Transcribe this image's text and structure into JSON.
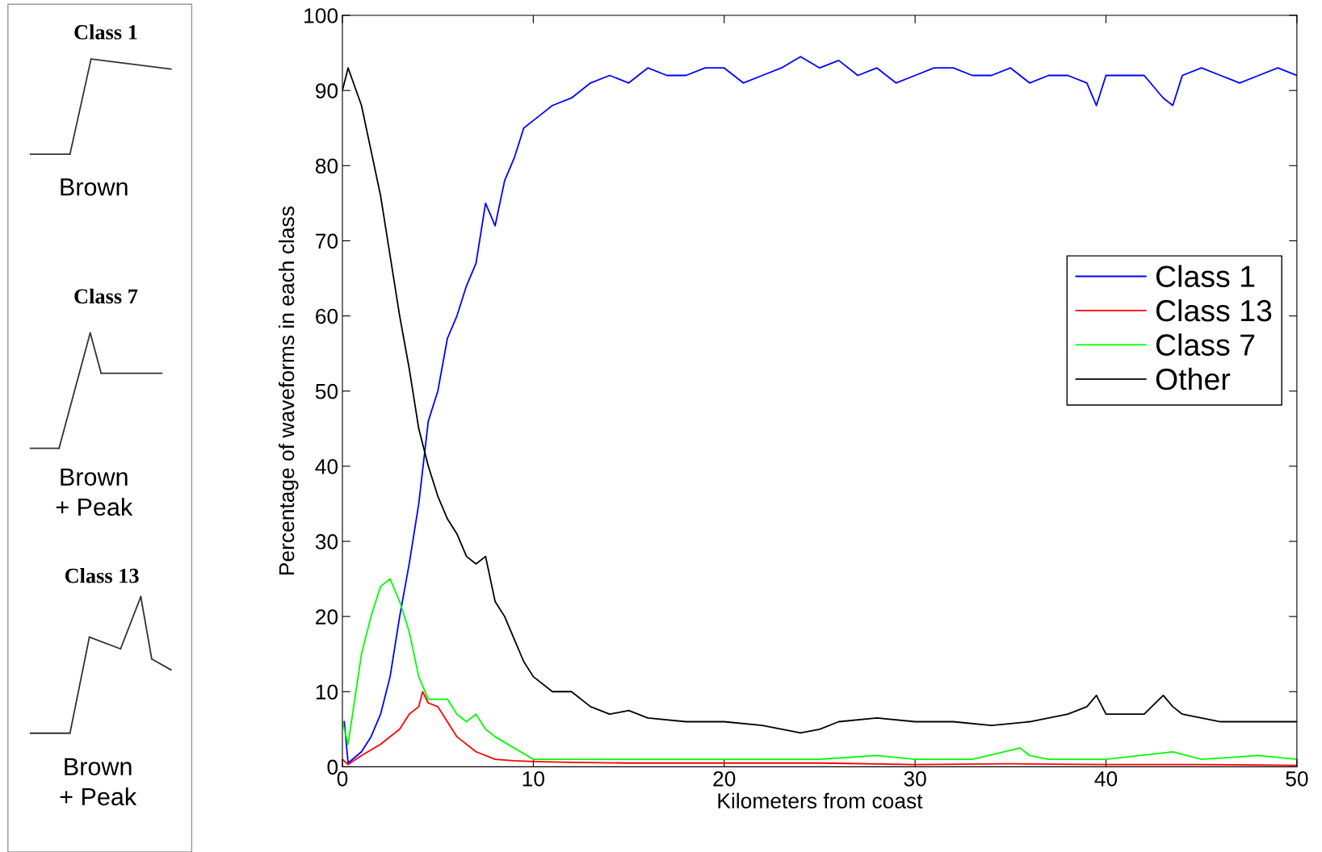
{
  "chart_data": {
    "type": "line",
    "xlabel": "Kilometers from coast",
    "ylabel": "Percentage of waveforms in each class",
    "xlim": [
      0,
      50
    ],
    "ylim": [
      0,
      100
    ],
    "xticks": [
      0,
      10,
      20,
      30,
      40,
      50
    ],
    "yticks": [
      0,
      10,
      20,
      30,
      40,
      50,
      60,
      70,
      80,
      90,
      100
    ],
    "grid": false,
    "legend": "top right",
    "annotations": [
      "Class 1",
      "Brown",
      "Class 7",
      "Brown\n+ Peak",
      "Class 13",
      "Brown\n+ Peak"
    ],
    "series": [
      {
        "name": "Class 1",
        "color": "#0000ff",
        "x": [
          0.1,
          0.3,
          1,
          1.5,
          2,
          2.5,
          3,
          3.5,
          4,
          4.5,
          5,
          5.5,
          6,
          6.5,
          7,
          7.5,
          8,
          8.5,
          9,
          9.5,
          10,
          10.5,
          11,
          12,
          13,
          14,
          15,
          16,
          17,
          18,
          19,
          20,
          21,
          22,
          23,
          24,
          25,
          26,
          27,
          28,
          29,
          30,
          31,
          32,
          33,
          34,
          35,
          36,
          37,
          38,
          39,
          39.5,
          40,
          41,
          42,
          43,
          43.5,
          44,
          45,
          46,
          47,
          48,
          49,
          50
        ],
        "values": [
          6,
          0.5,
          2,
          4,
          7,
          12,
          20,
          27,
          35,
          46,
          50,
          57,
          60,
          64,
          67,
          75,
          72,
          78,
          81,
          85,
          86,
          87,
          88,
          89,
          91,
          92,
          91,
          93,
          92,
          92,
          93,
          93,
          91,
          92,
          93,
          94.5,
          93,
          94,
          92,
          93,
          91,
          92,
          93,
          93,
          92,
          92,
          93,
          91,
          92,
          92,
          91,
          88,
          92,
          92,
          92,
          89,
          88,
          92,
          93,
          92,
          91,
          92,
          93,
          92
        ]
      },
      {
        "name": "Class 13",
        "color": "#ff0000",
        "x": [
          0,
          0.3,
          1,
          2,
          3,
          3.5,
          4,
          4.2,
          4.5,
          5,
          5.5,
          6,
          7,
          8,
          9,
          10,
          12,
          15,
          20,
          25,
          30,
          35,
          40,
          45,
          50
        ],
        "values": [
          1,
          0.3,
          1.5,
          3,
          5,
          7,
          8,
          10,
          8.5,
          8,
          6,
          4,
          2,
          1,
          0.8,
          0.7,
          0.6,
          0.5,
          0.5,
          0.5,
          0.3,
          0.4,
          0.3,
          0.3,
          0.2
        ]
      },
      {
        "name": "Class 7",
        "color": "#00ff00",
        "x": [
          0,
          0.3,
          1,
          1.5,
          2,
          2.5,
          3,
          3.5,
          4,
          4.5,
          5,
          5.5,
          6,
          6.5,
          7,
          7.5,
          8,
          9,
          10,
          12,
          15,
          20,
          25,
          28,
          30,
          33,
          35.5,
          36,
          37,
          40,
          43.5,
          45,
          48,
          50
        ],
        "values": [
          6,
          3,
          15,
          20,
          24,
          25,
          22,
          18,
          12,
          9,
          9,
          9,
          7,
          6,
          7,
          5,
          4,
          2.5,
          1,
          1,
          1,
          1,
          1,
          1.5,
          1,
          1,
          2.5,
          1.5,
          1,
          1,
          2,
          1,
          1.5,
          1
        ]
      },
      {
        "name": "Other",
        "color": "#000000",
        "x": [
          0,
          0.3,
          1,
          1.5,
          2,
          2.5,
          3,
          3.5,
          4,
          4.5,
          5,
          5.5,
          6,
          6.5,
          7,
          7.5,
          8,
          8.5,
          9,
          9.5,
          10,
          11,
          12,
          13,
          14,
          15,
          16,
          18,
          20,
          22,
          24,
          25,
          26,
          28,
          30,
          32,
          34,
          36,
          38,
          39,
          39.5,
          40,
          42,
          43,
          43.5,
          44,
          46,
          48,
          50
        ],
        "values": [
          90,
          93,
          88,
          82,
          76,
          68,
          60,
          53,
          45,
          40,
          36,
          33,
          31,
          28,
          27,
          28,
          22,
          20,
          17,
          14,
          12,
          10,
          10,
          8,
          7,
          7.5,
          6.5,
          6,
          6,
          5.5,
          4.5,
          5,
          6,
          6.5,
          6,
          6,
          5.5,
          6,
          7,
          8,
          9.5,
          7,
          7,
          9.5,
          8,
          7,
          6,
          6,
          6
        ]
      }
    ]
  }
}
